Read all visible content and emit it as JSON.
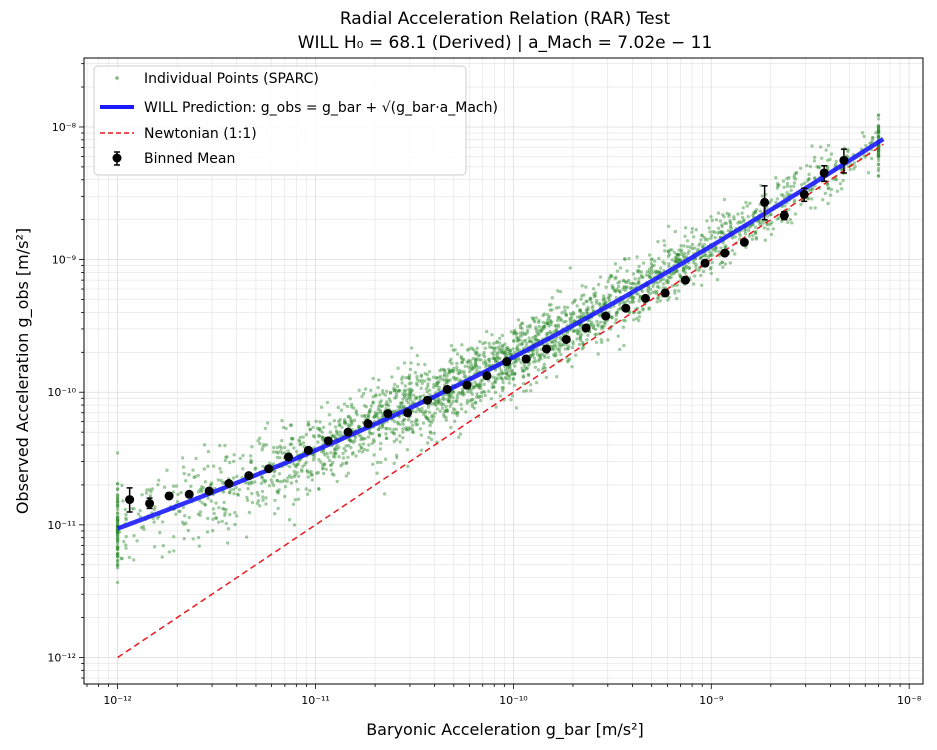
{
  "chart_data": {
    "type": "scatter",
    "title_line1": "Radial Acceleration Relation (RAR) Test",
    "title_line2": "WILL H₀ = 68.1 (Derived) | a_Mach = 7.02e − 11",
    "xlabel": "Baryonic Acceleration g_bar [m/s²]",
    "ylabel": "Observed Acceleration g_obs [m/s²]",
    "x_scale": "log",
    "y_scale": "log",
    "xlim_log10": [
      -12.17,
      -7.93
    ],
    "ylim_log10": [
      -12.2,
      -7.48
    ],
    "x_ticks": [
      {
        "exp": -12,
        "label": "10⁻¹²"
      },
      {
        "exp": -11,
        "label": "10⁻¹¹"
      },
      {
        "exp": -10,
        "label": "10⁻¹⁰"
      },
      {
        "exp": -9,
        "label": "10⁻⁹"
      },
      {
        "exp": -8,
        "label": "10⁻⁸"
      }
    ],
    "y_ticks": [
      {
        "exp": -12,
        "label": "10⁻¹²"
      },
      {
        "exp": -11,
        "label": "10⁻¹¹"
      },
      {
        "exp": -10,
        "label": "10⁻¹⁰"
      },
      {
        "exp": -9,
        "label": "10⁻⁹"
      },
      {
        "exp": -8,
        "label": "10⁻⁸"
      }
    ],
    "grid": true,
    "legend_position": "top-left",
    "legend": [
      {
        "label": "Individual Points (SPARC)",
        "kind": "scatter"
      },
      {
        "label": "WILL Prediction: g_obs = g_bar + √(g_bar·a_Mach)",
        "kind": "line"
      },
      {
        "label": "Newtonian (1:1)",
        "kind": "dashed"
      },
      {
        "label": "Binned Mean",
        "kind": "errorbar"
      }
    ],
    "a_mach": 7.02e-11,
    "model_x_range": [
      1e-12,
      7.4e-09
    ],
    "newtonian_x_range": [
      1e-12,
      7.4e-09
    ],
    "scatter_count": 2700,
    "scatter_x_range": [
      1e-12,
      7e-09
    ],
    "binned_mean": [
      {
        "x": 1.15e-12,
        "y": 1.55e-11,
        "err_lo": 3e-12,
        "err_hi": 3.5e-12
      },
      {
        "x": 1.45e-12,
        "y": 1.45e-11,
        "err_lo": 1.2e-12,
        "err_hi": 1.4e-12
      },
      {
        "x": 1.82e-12,
        "y": 1.65e-11,
        "err_lo": 8e-13,
        "err_hi": 9e-13
      },
      {
        "x": 2.3e-12,
        "y": 1.7e-11,
        "err_lo": 5e-13,
        "err_hi": 5e-13
      },
      {
        "x": 2.9e-12,
        "y": 1.8e-11,
        "err_lo": 5e-13,
        "err_hi": 5e-13
      },
      {
        "x": 3.65e-12,
        "y": 2.05e-11,
        "err_lo": 5e-13,
        "err_hi": 5e-13
      },
      {
        "x": 4.6e-12,
        "y": 2.35e-11,
        "err_lo": 5e-13,
        "err_hi": 5e-13
      },
      {
        "x": 5.8e-12,
        "y": 2.65e-11,
        "err_lo": 5e-13,
        "err_hi": 5e-13
      },
      {
        "x": 7.3e-12,
        "y": 3.25e-11,
        "err_lo": 5e-13,
        "err_hi": 5e-13
      },
      {
        "x": 9.2e-12,
        "y": 3.65e-11,
        "err_lo": 6e-13,
        "err_hi": 6e-13
      },
      {
        "x": 1.16e-11,
        "y": 4.3e-11,
        "err_lo": 7e-13,
        "err_hi": 7e-13
      },
      {
        "x": 1.46e-11,
        "y": 5e-11,
        "err_lo": 8e-13,
        "err_hi": 8e-13
      },
      {
        "x": 1.84e-11,
        "y": 5.8e-11,
        "err_lo": 9e-13,
        "err_hi": 9e-13
      },
      {
        "x": 2.32e-11,
        "y": 6.9e-11,
        "err_lo": 1e-12,
        "err_hi": 1e-12
      },
      {
        "x": 2.92e-11,
        "y": 7e-11,
        "err_lo": 1e-12,
        "err_hi": 1e-12
      },
      {
        "x": 3.68e-11,
        "y": 8.7e-11,
        "err_lo": 1.5e-12,
        "err_hi": 1.5e-12
      },
      {
        "x": 4.63e-11,
        "y": 1.05e-10,
        "err_lo": 2e-12,
        "err_hi": 2e-12
      },
      {
        "x": 5.83e-11,
        "y": 1.13e-10,
        "err_lo": 2e-12,
        "err_hi": 2e-12
      },
      {
        "x": 7.35e-11,
        "y": 1.33e-10,
        "err_lo": 2e-12,
        "err_hi": 2e-12
      },
      {
        "x": 9.25e-11,
        "y": 1.7e-10,
        "err_lo": 3e-12,
        "err_hi": 3e-12
      },
      {
        "x": 1.16e-10,
        "y": 1.78e-10,
        "err_lo": 3e-12,
        "err_hi": 3e-12
      },
      {
        "x": 1.47e-10,
        "y": 2.12e-10,
        "err_lo": 4e-12,
        "err_hi": 4e-12
      },
      {
        "x": 1.85e-10,
        "y": 2.5e-10,
        "err_lo": 5e-12,
        "err_hi": 5e-12
      },
      {
        "x": 2.33e-10,
        "y": 3.05e-10,
        "err_lo": 6e-12,
        "err_hi": 6e-12
      },
      {
        "x": 2.93e-10,
        "y": 3.75e-10,
        "err_lo": 8e-12,
        "err_hi": 8e-12
      },
      {
        "x": 3.7e-10,
        "y": 4.3e-10,
        "err_lo": 1e-11,
        "err_hi": 1e-11
      },
      {
        "x": 4.65e-10,
        "y": 5.1e-10,
        "err_lo": 1.5e-11,
        "err_hi": 1.5e-11
      },
      {
        "x": 5.85e-10,
        "y": 5.6e-10,
        "err_lo": 1.5e-11,
        "err_hi": 1.5e-11
      },
      {
        "x": 7.4e-10,
        "y": 7e-10,
        "err_lo": 2e-11,
        "err_hi": 2e-11
      },
      {
        "x": 9.3e-10,
        "y": 9.4e-10,
        "err_lo": 3e-11,
        "err_hi": 3e-11
      },
      {
        "x": 1.17e-09,
        "y": 1.12e-09,
        "err_lo": 4e-11,
        "err_hi": 4e-11
      },
      {
        "x": 1.47e-09,
        "y": 1.35e-09,
        "err_lo": 5e-11,
        "err_hi": 5e-11
      },
      {
        "x": 1.86e-09,
        "y": 2.7e-09,
        "err_lo": 7e-10,
        "err_hi": 9e-10
      },
      {
        "x": 2.34e-09,
        "y": 2.15e-09,
        "err_lo": 1.5e-10,
        "err_hi": 1.5e-10
      },
      {
        "x": 2.95e-09,
        "y": 3.1e-09,
        "err_lo": 3.5e-10,
        "err_hi": 3.5e-10
      },
      {
        "x": 3.72e-09,
        "y": 4.5e-09,
        "err_lo": 6e-10,
        "err_hi": 6e-10
      },
      {
        "x": 4.68e-09,
        "y": 5.6e-09,
        "err_lo": 1.1e-09,
        "err_hi": 1.2e-09
      }
    ],
    "colors": {
      "scatter": "#2e8b2e",
      "model": "#1a1aff",
      "newtonian": "#e8191f",
      "binned": "#000000",
      "grid": "#dcdcdc"
    }
  }
}
